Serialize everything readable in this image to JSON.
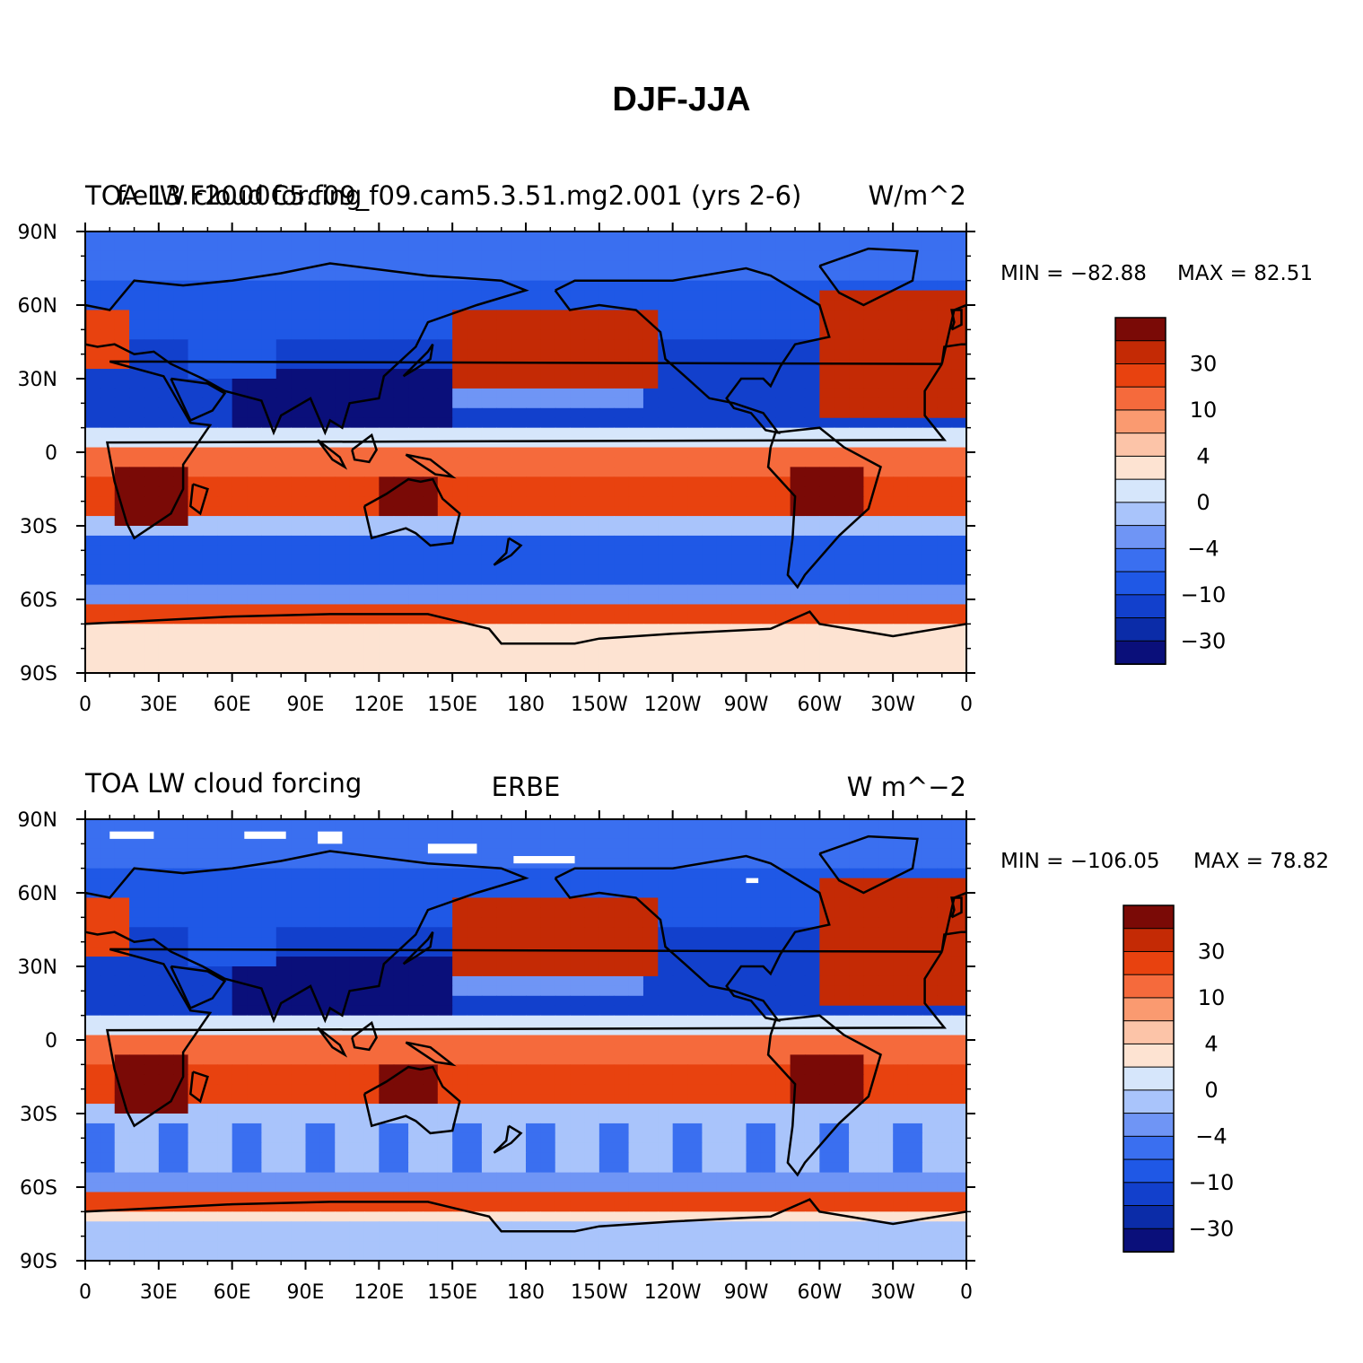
{
  "title": "DJF-JJA",
  "colors": {
    "levels": [
      "#0a0f7a",
      "#0b2ca8",
      "#1240cc",
      "#1f58e6",
      "#3a6ff0",
      "#6f95f5",
      "#a9c4fb",
      "#d6e6fb",
      "#fde3d2",
      "#fcc4a8",
      "#fa9a70",
      "#f56a3c",
      "#e8420f",
      "#c42a05",
      "#7a0a06"
    ],
    "coast": "#000000"
  },
  "panels": [
    {
      "left_title": "TOA LW cloud forcing",
      "center_title": "f.e13.F2000C5.f09_f09.cam5.3.51.mg2.001 (yrs 2-6)",
      "right_units": "W/m^2",
      "min_label": "MIN = −82.88",
      "max_label": "MAX =  82.51"
    },
    {
      "left_title": "TOA LW cloud forcing",
      "center_title": "ERBE",
      "right_units": "W m^−2",
      "min_label": "MIN = −106.05",
      "max_label": "MAX =  78.82"
    }
  ],
  "lat_labels": [
    "90N",
    "60N",
    "30N",
    "0",
    "30S",
    "60S",
    "90S"
  ],
  "lon_labels": [
    "0",
    "30E",
    "60E",
    "90E",
    "120E",
    "150E",
    "180",
    "150W",
    "120W",
    "90W",
    "60W",
    "30W",
    "0"
  ],
  "colorbar_labels": [
    "30",
    "10",
    "4",
    "0",
    "−4",
    "−10",
    "−30"
  ]
}
